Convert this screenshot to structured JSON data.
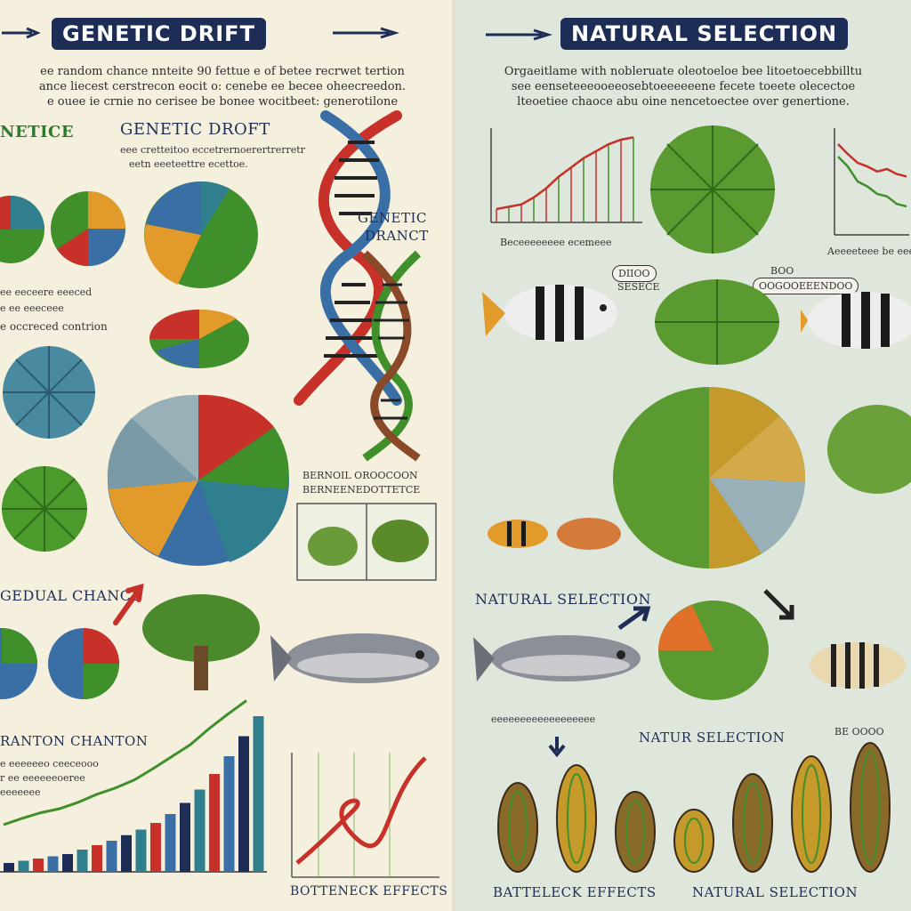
{
  "left": {
    "title": "GENETIC DRIFT",
    "intro_lines": [
      "ee random chance nnteite 90 fettue e of betee recrwet tertion",
      "ance liecest cerstrecon eocit o: cenebe ee becee oheecreedon.",
      "e ouee ie crnie no cerisee be bonee wocitbeet: generotilone"
    ],
    "label_geneticsheadline": "NETICE",
    "label_genetic_drift_sub": "GENETIC DROFT",
    "sub_lines": [
      "eee cretteitoo eccetrernoerertrerretr",
      "eetn eeeteettre ecettoe."
    ],
    "dna_label_lines": [
      "GENETIC",
      "DRANCT"
    ],
    "label_random_common": "e occreced contrion",
    "label_lines_misc": [
      "ee eeceere eeeced",
      "e ee eeeceee"
    ],
    "label_gedual_chance": "GEDUAL CHANCE",
    "label_ranton_chanton": "RANTON CHANTON",
    "label_bottleneck_effects": "BOTTENECK EFFECTS",
    "label_bernoil": [
      "BERNOIL OROOCOON",
      "BERNEENEDOTTETCE"
    ],
    "label_stat_lines": [
      "e eeeeeeo ceeceooo",
      "r ee eeeeeeoeree",
      "eeeeeee"
    ],
    "bar_values": [
      8,
      10,
      12,
      14,
      16,
      20,
      24,
      28,
      33,
      38,
      44,
      52,
      62,
      74,
      88,
      104,
      122,
      140
    ],
    "trend_values": [
      20,
      28,
      35,
      40,
      48,
      58,
      66,
      76,
      90,
      105,
      120,
      140,
      158,
      175
    ],
    "colors": {
      "navy": "#1e2d55",
      "green": "#3f8f2a",
      "red": "#c8302a",
      "teal": "#2f7f8f",
      "orange": "#e29a2b",
      "blue": "#3a6fa6"
    }
  },
  "right": {
    "title": "NATURAL SELECTION",
    "intro_lines": [
      "Orgaeitlame with nobleruate oleotoeloe bee litoetoecebbilltu",
      "see eenseteeeooeeosebtoeeeeeene fecete toeete olecectoe",
      "lteoetiee chaoce abu oine nencetoectee over genertione."
    ],
    "bubble_left": [
      "DIIOO",
      "SESECE"
    ],
    "bubble_right": [
      "BOO",
      "OOGOOEEENDOO"
    ],
    "label_natural_selection_mid": "NATURAL SELECTION",
    "label_natur_selection": "NATUR SELECTION",
    "label_battleneck": "BATTELECK EFFECTS",
    "label_natural_selection_bottom": "NATURAL SELECTION",
    "label_chart_caption": "Beceeeeeeee ecemeee",
    "label_chart_caption2": "Aeeeeteee be eeeeeee",
    "label_misc": [
      "eeeeeeeeeeeeeeeeee",
      "BE OOOO"
    ],
    "line_chart_values": [
      10,
      12,
      14,
      20,
      28,
      38,
      46,
      54,
      60,
      66,
      70,
      72
    ],
    "decline_values_red": [
      70,
      62,
      55,
      52,
      48,
      50,
      46,
      44
    ],
    "decline_values_green": [
      60,
      52,
      40,
      36,
      30,
      28,
      22,
      20
    ]
  }
}
